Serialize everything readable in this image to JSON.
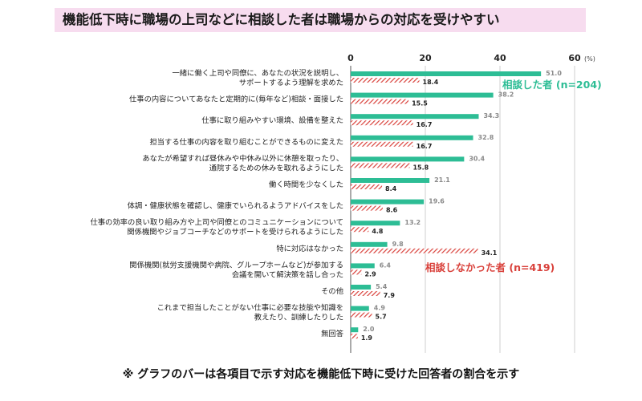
{
  "title": "機能低下時に職場の上司などに相談した者は職場からの対応を受けやすい",
  "footnote": "※ グラフのバーは各項目で示す対応を機能低下時に受けた回答者の割合を示す",
  "colors": {
    "green": "#2dbd95",
    "red": "#d9413b",
    "title_bg": "#f7dcef"
  },
  "chart_data": {
    "type": "bar",
    "orientation": "horizontal",
    "unit": "(%)",
    "xlim": [
      0,
      60
    ],
    "xticks": [
      "0",
      "20",
      "40",
      "60"
    ],
    "grid": true,
    "categories": [
      [
        "一緒に働く上司や同僚に、あなたの状況を説明し、",
        "サポートするよう理解を求めた"
      ],
      [
        "仕事の内容についてあなたと定期的に(毎年など)相談・面接した"
      ],
      [
        "仕事に取り組みやすい環境、設備を整えた"
      ],
      [
        "担当する仕事の内容を取り組むことができるものに変えた"
      ],
      [
        "あなたが希望すれば昼休みや中休み以外に休憩を取ったり、",
        "通院するための休みを取れるようにした"
      ],
      [
        "働く時間を少なくした"
      ],
      [
        "体調・健康状態を確認し、健康でいられるようアドバイスをした"
      ],
      [
        "仕事の効率の良い取り組み方や上司や同僚とのコミュニケーションについて",
        "関係機関やジョブコーチなどのサポートを受けられるようにした"
      ],
      [
        "特に対応はなかった"
      ],
      [
        "関係機関(就労支援機関や病院、グループホームなど)が参加する",
        "会議を開いて解決策を話し合った"
      ],
      [
        "その他"
      ],
      [
        "これまで担当したことがない仕事に必要な技能や知識を",
        "教えたり、訓練したりした"
      ],
      [
        "無回答"
      ]
    ],
    "series": [
      {
        "name": "相談した者 (n=204)",
        "values": [
          51.0,
          38.2,
          34.3,
          32.8,
          30.4,
          21.1,
          19.6,
          13.2,
          9.8,
          6.4,
          5.4,
          4.9,
          2.0
        ]
      },
      {
        "name": "相談しなかった者 (n=419)",
        "values": [
          18.4,
          15.5,
          16.7,
          16.7,
          15.8,
          8.4,
          8.6,
          4.8,
          34.1,
          2.9,
          7.9,
          5.7,
          1.9
        ]
      }
    ]
  }
}
